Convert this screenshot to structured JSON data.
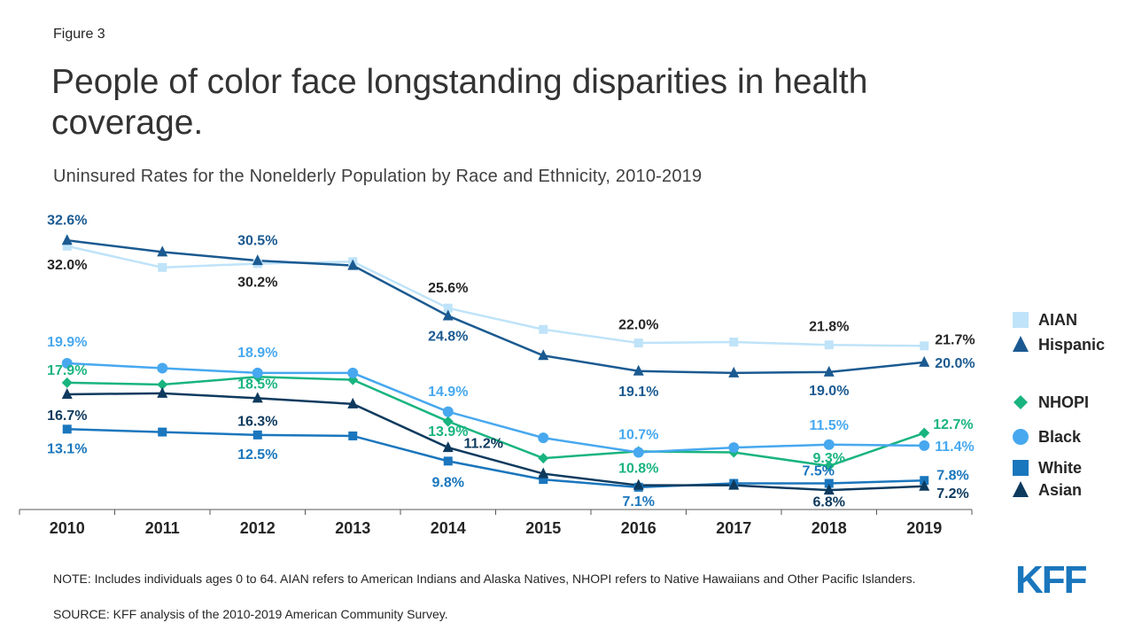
{
  "figure_label": "Figure 3",
  "chart_data": {
    "type": "line",
    "title": "People of color face longstanding disparities in health coverage.",
    "subtitle": "Uninsured Rates for the Nonelderly Population by Race and Ethnicity, 2010-2019",
    "categories": [
      "2010",
      "2011",
      "2012",
      "2013",
      "2014",
      "2015",
      "2016",
      "2017",
      "2018",
      "2019"
    ],
    "ylim": [
      4.8,
      35
    ],
    "series": [
      {
        "name": "AIAN",
        "color": "#bfe3f9",
        "label_color": "#262626",
        "marker": "square",
        "values": [
          32.0,
          29.8,
          30.2,
          30.4,
          25.6,
          23.4,
          22.0,
          22.1,
          21.8,
          21.7
        ],
        "value_labels": [
          "32.0%",
          null,
          "30.2%",
          null,
          "25.6%",
          null,
          "22.0%",
          null,
          "21.8%",
          "21.7%"
        ]
      },
      {
        "name": "Hispanic",
        "color": "#1b5a91",
        "label_color": "#1b5a91",
        "marker": "triangle",
        "values": [
          32.6,
          31.4,
          30.5,
          30.0,
          24.8,
          20.7,
          19.1,
          18.9,
          19.0,
          20.0
        ],
        "value_labels": [
          "32.6%",
          null,
          "30.5%",
          null,
          "24.8%",
          null,
          "19.1%",
          null,
          "19.0%",
          "20.0%"
        ]
      },
      {
        "name": "NHOPI",
        "color": "#19b47f",
        "label_color": "#19b47f",
        "marker": "diamond",
        "values": [
          17.9,
          17.7,
          18.5,
          18.2,
          13.9,
          10.1,
          10.8,
          10.7,
          9.3,
          12.7
        ],
        "value_labels": [
          "17.9%",
          null,
          "18.5%",
          null,
          "13.9%",
          null,
          "10.8%",
          null,
          "9.3%",
          "12.7%"
        ]
      },
      {
        "name": "Black",
        "color": "#47a8ef",
        "label_color": "#47a8ef",
        "marker": "circle",
        "values": [
          19.9,
          19.4,
          18.9,
          18.9,
          14.9,
          12.2,
          10.7,
          11.2,
          11.5,
          11.4
        ],
        "value_labels": [
          "19.9%",
          null,
          "18.9%",
          null,
          "14.9%",
          null,
          "10.7%",
          null,
          "11.5%",
          "11.4%"
        ]
      },
      {
        "name": "White",
        "color": "#1a76bd",
        "label_color": "#1a76bd",
        "marker": "square",
        "values": [
          13.1,
          12.8,
          12.5,
          12.4,
          9.8,
          7.9,
          7.1,
          7.5,
          7.5,
          7.8
        ],
        "value_labels": [
          "13.1%",
          null,
          "12.5%",
          null,
          "9.8%",
          null,
          "7.1%",
          null,
          "7.5%",
          "7.8%"
        ]
      },
      {
        "name": "Asian",
        "color": "#0e3a5e",
        "label_color": "#0e3a5e",
        "marker": "triangle",
        "values": [
          16.7,
          16.8,
          16.3,
          15.7,
          11.2,
          8.5,
          7.3,
          7.3,
          6.8,
          7.2
        ],
        "value_labels": [
          "16.7%",
          null,
          "16.3%",
          null,
          "11.2%",
          null,
          null,
          null,
          "6.8%",
          "7.2%"
        ]
      }
    ]
  },
  "note": "NOTE: Includes individuals ages 0 to 64. AIAN refers to American Indians and Alaska Natives, NHOPI refers to Native Hawaiians and Other Pacific Islanders.",
  "source": "SOURCE: KFF analysis of the 2010-2019 American Community Survey.",
  "logo": "KFF"
}
